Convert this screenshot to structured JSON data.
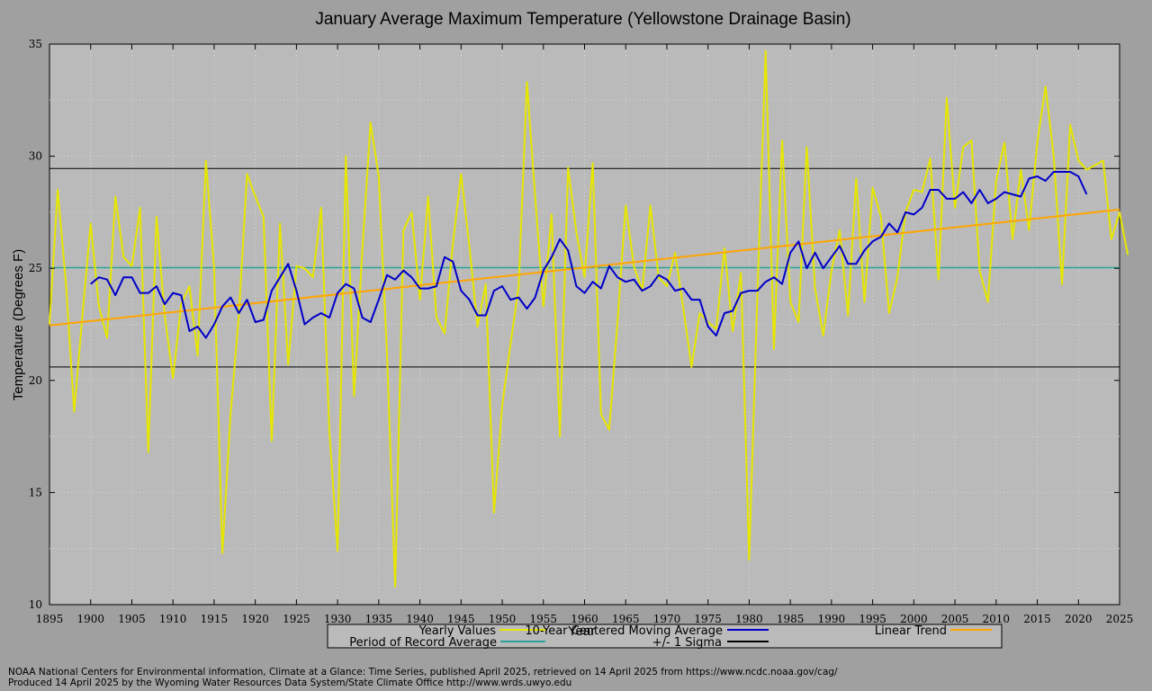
{
  "chart_data": {
    "type": "line",
    "title": "January Average Maximum Temperature (Yellowstone Drainage Basin)",
    "xlabel": "Year",
    "ylabel": "Temperature (Degrees F)",
    "xlim": [
      1895,
      2025
    ],
    "ylim": [
      10,
      35
    ],
    "x_ticks": [
      1895,
      1900,
      1905,
      1910,
      1915,
      1920,
      1925,
      1930,
      1935,
      1940,
      1945,
      1950,
      1955,
      1960,
      1965,
      1970,
      1975,
      1980,
      1985,
      1990,
      1995,
      2000,
      2005,
      2010,
      2015,
      2020,
      2025
    ],
    "y_ticks": [
      10,
      15,
      20,
      25,
      30,
      35
    ],
    "grid": true,
    "legend_position": "bottom",
    "colors": {
      "plot_background": "#bababa",
      "page_background": "#a0a0a0",
      "yearly": "#e6e600",
      "moving_average": "#0000c8",
      "trend": "#ffa500",
      "period_average": "#2aa198",
      "sigma": "#000000"
    },
    "legend": {
      "yearly": "Yearly Values",
      "moving_average": "10-Year Centered Moving Average",
      "trend": "Linear Trend",
      "period_average": "Period of Record Average",
      "sigma": "+/- 1 Sigma"
    },
    "series": {
      "yearly": {
        "start_year": 1895,
        "values": [
          22.5,
          28.5,
          24.3,
          18.6,
          22.9,
          27.0,
          23.3,
          21.9,
          28.2,
          25.5,
          25.1,
          27.7,
          16.8,
          27.3,
          22.9,
          20.1,
          23.4,
          24.2,
          21.1,
          29.8,
          25.0,
          12.3,
          18.5,
          22.9,
          29.2,
          28.2,
          27.3,
          17.3,
          27.0,
          20.7,
          25.1,
          25.0,
          24.6,
          27.7,
          17.7,
          12.4,
          30.0,
          19.3,
          25.8,
          31.5,
          29.1,
          21.2,
          10.8,
          26.7,
          27.5,
          23.6,
          28.2,
          22.8,
          22.1,
          26.1,
          29.2,
          26.0,
          22.4,
          24.3,
          14.1,
          18.9,
          21.6,
          24.2,
          33.3,
          28.2,
          23.3,
          27.4,
          17.5,
          29.5,
          26.6,
          24.6,
          29.7,
          18.5,
          17.8,
          22.6,
          27.8,
          25.1,
          24.0,
          27.8,
          24.6,
          24.2,
          25.7,
          23.2,
          20.6,
          23.0,
          22.6,
          22.3,
          25.9,
          22.2,
          24.8,
          12.0,
          23.9,
          34.7,
          21.4,
          30.7,
          23.5,
          22.6,
          30.4,
          24.1,
          22.0,
          24.9,
          26.7,
          22.9,
          29.0,
          23.5,
          28.6,
          27.3,
          23.0,
          24.6,
          27.5,
          28.5,
          28.4,
          29.9,
          24.5,
          32.6,
          27.7,
          30.4,
          30.7,
          24.9,
          23.5,
          28.9,
          30.6,
          26.3,
          29.4,
          26.7,
          30.6,
          33.1,
          30.0,
          24.3,
          31.4,
          29.8,
          29.4,
          29.6,
          29.8,
          26.3,
          27.5,
          25.6
        ]
      },
      "moving_average": {
        "start_year": 1900,
        "values": [
          24.3,
          24.6,
          24.5,
          23.8,
          24.6,
          24.6,
          23.9,
          23.9,
          24.2,
          23.4,
          23.9,
          23.8,
          22.2,
          22.4,
          21.9,
          22.5,
          23.3,
          23.7,
          23.0,
          23.6,
          22.6,
          22.7,
          24.0,
          24.6,
          25.2,
          24.0,
          22.5,
          22.8,
          23.0,
          22.8,
          23.9,
          24.3,
          24.1,
          22.8,
          22.6,
          23.6,
          24.7,
          24.5,
          24.9,
          24.6,
          24.1,
          24.1,
          24.2,
          25.5,
          25.3,
          24.0,
          23.6,
          22.9,
          22.9,
          24.0,
          24.2,
          23.6,
          23.7,
          23.2,
          23.7,
          24.9,
          25.5,
          26.3,
          25.8,
          24.2,
          23.9,
          24.4,
          24.1,
          25.1,
          24.6,
          24.4,
          24.5,
          24.0,
          24.2,
          24.7,
          24.5,
          24.0,
          24.1,
          23.6,
          23.6,
          22.4,
          22.0,
          23.0,
          23.1,
          23.9,
          24.0,
          24.0,
          24.4,
          24.6,
          24.3,
          25.7,
          26.2,
          25.0,
          25.7,
          25.0,
          25.5,
          26.0,
          25.2,
          25.2,
          25.8,
          26.2,
          26.4,
          27.0,
          26.6,
          27.5,
          27.4,
          27.7,
          28.5,
          28.5,
          28.1,
          28.1,
          28.4,
          27.9,
          28.5,
          27.9,
          28.1,
          28.4,
          28.3,
          28.2,
          29.0,
          29.1,
          28.9,
          29.3,
          29.3,
          29.3,
          29.1,
          28.3
        ]
      },
      "trend": {
        "x": [
          1895,
          2025
        ],
        "y": [
          22.45,
          27.62
        ]
      },
      "period_average": 25.03,
      "sigma": [
        20.6,
        29.45
      ]
    }
  },
  "credits": [
    "NOAA National Centers for Environmental information, Climate at a Glance: Time Series, published April 2025, retrieved on 14 April 2025 from https://www.ncdc.noaa.gov/cag/",
    "Produced 14 April 2025 by the Wyoming Water Resources Data System/State Climate Office http://www.wrds.uwyo.edu"
  ]
}
